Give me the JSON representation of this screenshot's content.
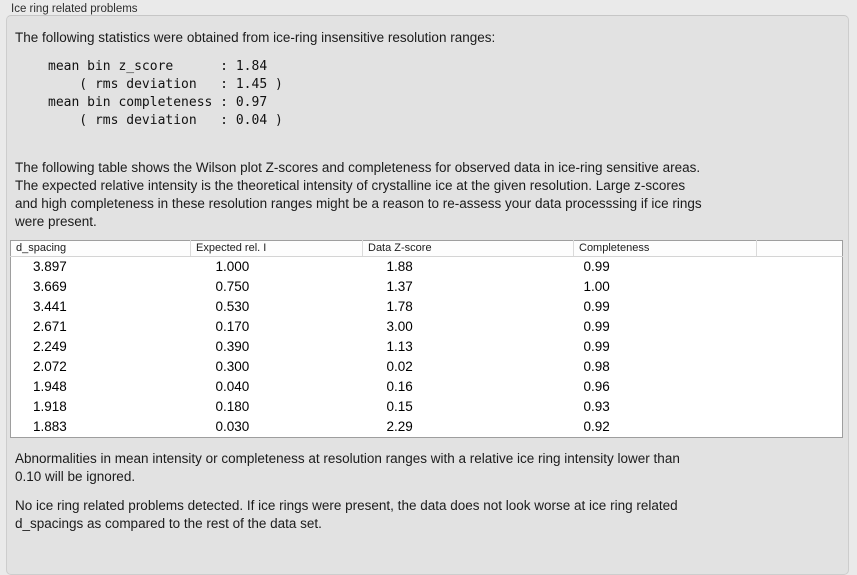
{
  "panel": {
    "title": "Ice ring related problems"
  },
  "intro": "The following statistics were obtained from ice-ring insensitive resolution ranges:",
  "stats_block": "mean bin z_score      : 1.84\n    ( rms deviation   : 1.45 )\nmean bin completeness : 0.97\n    ( rms deviation   : 0.04 )",
  "stats": {
    "mean_bin_z_score": "1.84",
    "z_score_rms_deviation": "1.45",
    "mean_bin_completeness": "0.97",
    "completeness_rms_deviation": "0.04"
  },
  "description": {
    "lines": [
      "The following table shows the Wilson plot Z-scores and completeness for observed data in ice-ring sensitive areas.",
      "The expected relative intensity is the theoretical intensity of crystalline ice at the given resolution. Large z-scores",
      "and high completeness in these resolution ranges might be a reason to re-assess your data processsing if ice rings",
      "were present."
    ]
  },
  "table": {
    "columns": [
      "d_spacing",
      "Expected rel. I",
      "Data Z-score",
      "Completeness"
    ],
    "rows": [
      [
        "3.897",
        "1.000",
        "1.88",
        "0.99"
      ],
      [
        "3.669",
        "0.750",
        "1.37",
        "1.00"
      ],
      [
        "3.441",
        "0.530",
        "1.78",
        "0.99"
      ],
      [
        "2.671",
        "0.170",
        "3.00",
        "0.99"
      ],
      [
        "2.249",
        "0.390",
        "1.13",
        "0.99"
      ],
      [
        "2.072",
        "0.300",
        "0.02",
        "0.98"
      ],
      [
        "1.948",
        "0.040",
        "0.16",
        "0.96"
      ],
      [
        "1.918",
        "0.180",
        "0.15",
        "0.93"
      ],
      [
        "1.883",
        "0.030",
        "2.29",
        "0.92"
      ]
    ]
  },
  "footnote": {
    "lines": [
      "Abnormalities in mean intensity or completeness at resolution ranges with a relative ice ring intensity lower than",
      "0.10 will be ignored."
    ]
  },
  "conclusion": {
    "lines": [
      "No ice ring related problems detected. If ice rings were present, the data does not look worse at ice ring related",
      "d_spacings as compared to the rest of the data set."
    ]
  },
  "colors": {
    "window_bg": "#eaeaea",
    "groupbox_bg": "#e2e2e2",
    "groupbox_border": "#cdcdcd",
    "table_bg": "#ffffff",
    "table_border": "#9e9e9e",
    "text": "#1b1b1b"
  }
}
